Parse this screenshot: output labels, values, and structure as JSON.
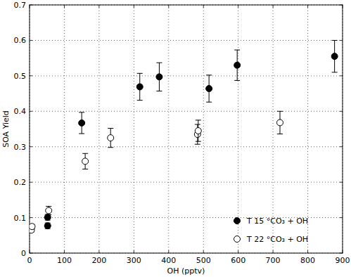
{
  "chart_data": {
    "type": "scatter",
    "x_label": "OH (pptv)",
    "y_label": "SOA Yield",
    "xlim": [
      0,
      900
    ],
    "ylim": [
      0,
      0.7
    ],
    "xticks": [
      0,
      100,
      200,
      300,
      400,
      500,
      600,
      700,
      800,
      900
    ],
    "yticks": [
      0,
      0.1,
      0.2,
      0.3,
      0.4,
      0.5,
      0.6,
      0.7
    ],
    "grid": true,
    "legend": "lower right",
    "series": [
      {
        "name": "T 15 °CO₃ + OH",
        "color": "#000000",
        "marker": "filled circle",
        "x": [
          52,
          52,
          150,
          317,
          373,
          516,
          597,
          877
        ],
        "values": [
          0.077,
          0.101,
          0.367,
          0.469,
          0.497,
          0.464,
          0.53,
          0.555
        ],
        "errors": [
          0.008,
          0.008,
          0.03,
          0.038,
          0.04,
          0.038,
          0.043,
          0.045
        ]
      },
      {
        "name": "T 22 °CO₃ + OH",
        "color": "#000000",
        "marker": "open circle",
        "x": [
          5,
          7,
          55,
          160,
          233,
          483,
          485,
          720
        ],
        "values": [
          0.065,
          0.075,
          0.12,
          0.259,
          0.325,
          0.335,
          0.345,
          0.368
        ],
        "errors": [
          0.006,
          0.006,
          0.012,
          0.022,
          0.027,
          0.028,
          0.03,
          0.032
        ]
      }
    ]
  }
}
